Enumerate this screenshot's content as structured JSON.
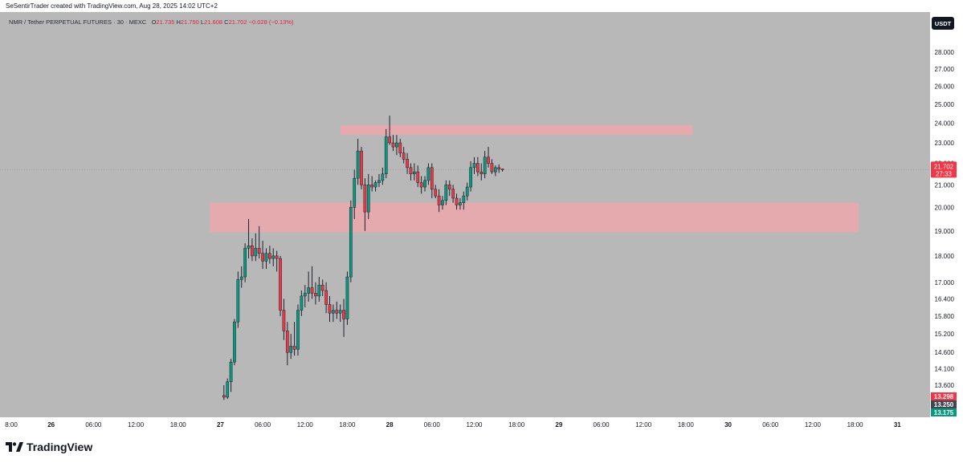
{
  "header": {
    "credit": "SeSentirTrader created with TradingView.com, Aug 28, 2025 14:02 UTC+2"
  },
  "legend": {
    "symbol": "NMR / Tether PERPETUAL FUTURES · 30 · MEXC",
    "o_label": "O",
    "o": "21.735",
    "h_label": "H",
    "h": "21.750",
    "l_label": "L",
    "l": "21.608",
    "c_label": "C",
    "c": "21.702",
    "change": "−0.028 (−0.13%)"
  },
  "currency_badge": "USDT",
  "price_axis": {
    "ticks": [
      {
        "label": "28.000",
        "value": 28.0
      },
      {
        "label": "27.000",
        "value": 27.0
      },
      {
        "label": "26.000",
        "value": 26.0
      },
      {
        "label": "25.000",
        "value": 25.0
      },
      {
        "label": "24.000",
        "value": 24.0
      },
      {
        "label": "23.000",
        "value": 23.0
      },
      {
        "label": "22.000",
        "value": 22.0
      },
      {
        "label": "21.000",
        "value": 21.0
      },
      {
        "label": "20.000",
        "value": 20.0
      },
      {
        "label": "19.000",
        "value": 19.0
      },
      {
        "label": "18.000",
        "value": 18.0
      },
      {
        "label": "17.000",
        "value": 17.0
      },
      {
        "label": "16.400",
        "value": 16.4
      },
      {
        "label": "15.800",
        "value": 15.8
      },
      {
        "label": "15.200",
        "value": 15.2
      },
      {
        "label": "14.600",
        "value": 14.6
      },
      {
        "label": "14.100",
        "value": 14.1
      },
      {
        "label": "13.600",
        "value": 13.6
      }
    ],
    "current_price": {
      "label": "21.702",
      "countdown": "27:33",
      "value": 21.702
    },
    "markers": [
      {
        "label": "13.298",
        "value": 13.298,
        "color": "#f23645"
      },
      {
        "label": "13.250",
        "value": 13.25,
        "color": "#434651"
      },
      {
        "label": "13.175",
        "value": 13.175,
        "color": "#089981"
      }
    ]
  },
  "time_axis": {
    "ticks": [
      {
        "label": "8:00",
        "t": 0
      },
      {
        "label": "26",
        "t": 12
      },
      {
        "label": "06:00",
        "t": 24
      },
      {
        "label": "12:00",
        "t": 36
      },
      {
        "label": "18:00",
        "t": 48
      },
      {
        "label": "27",
        "t": 60
      },
      {
        "label": "06:00",
        "t": 72
      },
      {
        "label": "12:00",
        "t": 84
      },
      {
        "label": "18:00",
        "t": 96
      },
      {
        "label": "28",
        "t": 108
      },
      {
        "label": "06:00",
        "t": 120
      },
      {
        "label": "12:00",
        "t": 132
      },
      {
        "label": "18:00",
        "t": 144
      },
      {
        "label": "29",
        "t": 156
      },
      {
        "label": "06:00",
        "t": 168
      },
      {
        "label": "12:00",
        "t": 180
      },
      {
        "label": "18:00",
        "t": 192
      },
      {
        "label": "30",
        "t": 204
      },
      {
        "label": "06:00",
        "t": 216
      },
      {
        "label": "12:00",
        "t": 228
      },
      {
        "label": "18:00",
        "t": 240
      },
      {
        "label": "31",
        "t": 252
      }
    ]
  },
  "chart_data": {
    "type": "candlestick",
    "interval_minutes": 30,
    "y_scale": "log",
    "ylim": [
      13.0,
      29.0
    ],
    "x_range": [
      0,
      260
    ],
    "up_color": "#089981",
    "down_color": "#f23645",
    "zones": [
      {
        "t_start": 94,
        "t_end": 194,
        "y_low": 23.4,
        "y_high": 23.9,
        "color": "#f4a6ab"
      },
      {
        "t_start": 57,
        "t_end": 241,
        "y_low": 18.95,
        "y_high": 20.2,
        "color": "#f4a6ab"
      }
    ],
    "candles": [
      {
        "t": 61,
        "o": 13.3,
        "h": 13.6,
        "l": 13.17,
        "c": 13.25
      },
      {
        "t": 62,
        "o": 13.25,
        "h": 13.8,
        "l": 13.2,
        "c": 13.7
      },
      {
        "t": 63,
        "o": 13.7,
        "h": 14.4,
        "l": 13.4,
        "c": 14.3
      },
      {
        "t": 64,
        "o": 14.3,
        "h": 15.7,
        "l": 14.2,
        "c": 15.6
      },
      {
        "t": 65,
        "o": 15.6,
        "h": 17.4,
        "l": 15.4,
        "c": 17.1
      },
      {
        "t": 66,
        "o": 17.1,
        "h": 17.6,
        "l": 16.8,
        "c": 17.2
      },
      {
        "t": 67,
        "o": 17.2,
        "h": 18.5,
        "l": 17.0,
        "c": 18.3
      },
      {
        "t": 68,
        "o": 18.3,
        "h": 19.5,
        "l": 17.9,
        "c": 18.4
      },
      {
        "t": 69,
        "o": 18.4,
        "h": 18.7,
        "l": 17.8,
        "c": 18.0
      },
      {
        "t": 70,
        "o": 18.0,
        "h": 18.9,
        "l": 17.8,
        "c": 18.3
      },
      {
        "t": 71,
        "o": 18.3,
        "h": 19.2,
        "l": 17.9,
        "c": 18.1
      },
      {
        "t": 72,
        "o": 18.1,
        "h": 18.6,
        "l": 17.5,
        "c": 17.8
      },
      {
        "t": 73,
        "o": 17.8,
        "h": 18.3,
        "l": 17.5,
        "c": 18.1
      },
      {
        "t": 74,
        "o": 18.1,
        "h": 18.4,
        "l": 17.7,
        "c": 17.9
      },
      {
        "t": 75,
        "o": 17.9,
        "h": 18.3,
        "l": 17.6,
        "c": 18.0
      },
      {
        "t": 76,
        "o": 18.0,
        "h": 18.2,
        "l": 17.4,
        "c": 17.9
      },
      {
        "t": 77,
        "o": 17.9,
        "h": 18.0,
        "l": 15.8,
        "c": 16.0
      },
      {
        "t": 78,
        "o": 16.0,
        "h": 16.4,
        "l": 15.0,
        "c": 15.3
      },
      {
        "t": 79,
        "o": 15.3,
        "h": 15.6,
        "l": 14.2,
        "c": 14.6
      },
      {
        "t": 80,
        "o": 14.6,
        "h": 15.2,
        "l": 14.4,
        "c": 14.8
      },
      {
        "t": 81,
        "o": 14.8,
        "h": 15.6,
        "l": 14.5,
        "c": 14.7
      },
      {
        "t": 82,
        "o": 14.7,
        "h": 16.2,
        "l": 14.5,
        "c": 16.0
      },
      {
        "t": 83,
        "o": 16.0,
        "h": 16.7,
        "l": 15.8,
        "c": 16.5
      },
      {
        "t": 84,
        "o": 16.5,
        "h": 16.9,
        "l": 16.1,
        "c": 16.6
      },
      {
        "t": 85,
        "o": 16.6,
        "h": 17.4,
        "l": 16.3,
        "c": 16.8
      },
      {
        "t": 86,
        "o": 16.8,
        "h": 17.6,
        "l": 16.4,
        "c": 16.6
      },
      {
        "t": 87,
        "o": 16.6,
        "h": 17.0,
        "l": 16.2,
        "c": 16.5
      },
      {
        "t": 88,
        "o": 16.5,
        "h": 17.2,
        "l": 16.3,
        "c": 16.9
      },
      {
        "t": 89,
        "o": 16.9,
        "h": 17.1,
        "l": 16.5,
        "c": 16.7
      },
      {
        "t": 90,
        "o": 16.7,
        "h": 17.0,
        "l": 15.9,
        "c": 16.2
      },
      {
        "t": 91,
        "o": 16.2,
        "h": 16.5,
        "l": 15.6,
        "c": 15.9
      },
      {
        "t": 92,
        "o": 15.9,
        "h": 16.2,
        "l": 15.6,
        "c": 16.0
      },
      {
        "t": 93,
        "o": 16.0,
        "h": 16.3,
        "l": 15.7,
        "c": 15.9
      },
      {
        "t": 94,
        "o": 15.9,
        "h": 16.2,
        "l": 15.6,
        "c": 16.0
      },
      {
        "t": 95,
        "o": 16.0,
        "h": 16.4,
        "l": 15.1,
        "c": 15.7
      },
      {
        "t": 96,
        "o": 15.7,
        "h": 17.4,
        "l": 15.5,
        "c": 17.2
      },
      {
        "t": 97,
        "o": 17.2,
        "h": 20.3,
        "l": 17.0,
        "c": 20.0
      },
      {
        "t": 98,
        "o": 20.0,
        "h": 21.7,
        "l": 19.5,
        "c": 21.3
      },
      {
        "t": 99,
        "o": 21.3,
        "h": 23.2,
        "l": 21.0,
        "c": 22.6
      },
      {
        "t": 100,
        "o": 22.6,
        "h": 22.8,
        "l": 20.8,
        "c": 21.0
      },
      {
        "t": 101,
        "o": 21.0,
        "h": 21.3,
        "l": 19.0,
        "c": 19.8
      },
      {
        "t": 102,
        "o": 19.8,
        "h": 21.5,
        "l": 19.5,
        "c": 21.0
      },
      {
        "t": 103,
        "o": 21.0,
        "h": 21.4,
        "l": 20.7,
        "c": 20.9
      },
      {
        "t": 104,
        "o": 20.9,
        "h": 21.2,
        "l": 20.7,
        "c": 21.1
      },
      {
        "t": 105,
        "o": 21.1,
        "h": 21.5,
        "l": 20.9,
        "c": 21.2
      },
      {
        "t": 106,
        "o": 21.2,
        "h": 21.8,
        "l": 21.0,
        "c": 21.5
      },
      {
        "t": 107,
        "o": 21.5,
        "h": 23.7,
        "l": 21.3,
        "c": 23.3
      },
      {
        "t": 108,
        "o": 23.3,
        "h": 24.4,
        "l": 22.9,
        "c": 23.0
      },
      {
        "t": 109,
        "o": 23.0,
        "h": 23.4,
        "l": 22.6,
        "c": 22.8
      },
      {
        "t": 110,
        "o": 22.8,
        "h": 23.4,
        "l": 22.4,
        "c": 23.0
      },
      {
        "t": 111,
        "o": 23.0,
        "h": 23.2,
        "l": 22.3,
        "c": 22.5
      },
      {
        "t": 112,
        "o": 22.5,
        "h": 22.8,
        "l": 22.0,
        "c": 22.2
      },
      {
        "t": 113,
        "o": 22.2,
        "h": 22.5,
        "l": 21.5,
        "c": 21.8
      },
      {
        "t": 114,
        "o": 21.8,
        "h": 22.0,
        "l": 21.2,
        "c": 21.5
      },
      {
        "t": 115,
        "o": 21.5,
        "h": 22.0,
        "l": 21.2,
        "c": 21.6
      },
      {
        "t": 116,
        "o": 21.6,
        "h": 21.9,
        "l": 20.9,
        "c": 21.1
      },
      {
        "t": 117,
        "o": 21.1,
        "h": 21.4,
        "l": 20.6,
        "c": 20.9
      },
      {
        "t": 118,
        "o": 20.9,
        "h": 21.4,
        "l": 20.7,
        "c": 21.2
      },
      {
        "t": 119,
        "o": 21.2,
        "h": 22.0,
        "l": 21.0,
        "c": 21.8
      },
      {
        "t": 120,
        "o": 21.8,
        "h": 22.0,
        "l": 20.4,
        "c": 20.8
      },
      {
        "t": 121,
        "o": 20.8,
        "h": 21.0,
        "l": 20.4,
        "c": 20.5
      },
      {
        "t": 122,
        "o": 20.5,
        "h": 20.8,
        "l": 19.8,
        "c": 20.1
      },
      {
        "t": 123,
        "o": 20.1,
        "h": 20.5,
        "l": 19.9,
        "c": 20.3
      },
      {
        "t": 124,
        "o": 20.3,
        "h": 21.2,
        "l": 20.1,
        "c": 21.0
      },
      {
        "t": 125,
        "o": 21.0,
        "h": 21.2,
        "l": 20.5,
        "c": 20.8
      },
      {
        "t": 126,
        "o": 20.8,
        "h": 21.0,
        "l": 20.2,
        "c": 20.4
      },
      {
        "t": 127,
        "o": 20.4,
        "h": 20.6,
        "l": 19.9,
        "c": 20.1
      },
      {
        "t": 128,
        "o": 20.1,
        "h": 20.4,
        "l": 19.9,
        "c": 20.2
      },
      {
        "t": 129,
        "o": 20.2,
        "h": 20.7,
        "l": 19.9,
        "c": 20.5
      },
      {
        "t": 130,
        "o": 20.5,
        "h": 21.1,
        "l": 20.3,
        "c": 20.9
      },
      {
        "t": 131,
        "o": 20.9,
        "h": 22.1,
        "l": 20.7,
        "c": 21.8
      },
      {
        "t": 132,
        "o": 21.8,
        "h": 22.3,
        "l": 21.5,
        "c": 22.0
      },
      {
        "t": 133,
        "o": 22.0,
        "h": 22.3,
        "l": 21.4,
        "c": 21.6
      },
      {
        "t": 134,
        "o": 21.6,
        "h": 22.0,
        "l": 21.2,
        "c": 21.5
      },
      {
        "t": 135,
        "o": 21.5,
        "h": 22.6,
        "l": 21.3,
        "c": 22.3
      },
      {
        "t": 136,
        "o": 22.3,
        "h": 22.8,
        "l": 21.8,
        "c": 22.0
      },
      {
        "t": 137,
        "o": 22.0,
        "h": 22.2,
        "l": 21.5,
        "c": 21.6
      },
      {
        "t": 138,
        "o": 21.6,
        "h": 21.9,
        "l": 21.4,
        "c": 21.8
      },
      {
        "t": 139,
        "o": 21.8,
        "h": 21.95,
        "l": 21.55,
        "c": 21.73
      },
      {
        "t": 140,
        "o": 21.735,
        "h": 21.75,
        "l": 21.608,
        "c": 21.702
      }
    ]
  }
}
